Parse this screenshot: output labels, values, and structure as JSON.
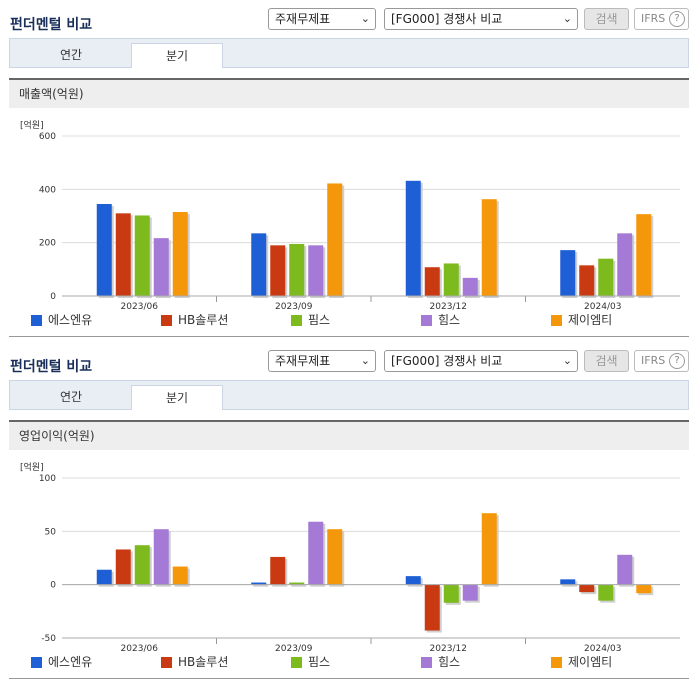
{
  "panels": [
    {
      "title": "펀더멘털 비교",
      "select1": "주재무제표",
      "select2": "[FG000] 경쟁사 비교",
      "search_label": "검색",
      "ifrs_label": "IFRS",
      "help_label": "?",
      "tabs": [
        {
          "label": "연간"
        },
        {
          "label": "분기"
        }
      ],
      "active_tab": 1,
      "section_title": "매출액(억원)"
    },
    {
      "title": "펀더멘털 비교",
      "select1": "주재무제표",
      "select2": "[FG000] 경쟁사 비교",
      "search_label": "검색",
      "ifrs_label": "IFRS",
      "help_label": "?",
      "tabs": [
        {
          "label": "연간"
        },
        {
          "label": "분기"
        }
      ],
      "active_tab": 1,
      "section_title": "영업이익(억원)"
    }
  ],
  "chart_data": [
    {
      "type": "bar",
      "unit_label": "[억원]",
      "categories": [
        "2023/06",
        "2023/09",
        "2023/12",
        "2024/03"
      ],
      "ylim": [
        0,
        600
      ],
      "yticks": [
        0,
        200,
        400,
        600
      ],
      "grid": true,
      "legend_position": "bottom",
      "series": [
        {
          "name": "에스엔유",
          "color": "#1f5fd6",
          "values": [
            345,
            235,
            432,
            172
          ]
        },
        {
          "name": "HB솔루션",
          "color": "#c93a12",
          "values": [
            310,
            190,
            108,
            115
          ]
        },
        {
          "name": "핌스",
          "color": "#7dba1e",
          "values": [
            302,
            195,
            122,
            140
          ]
        },
        {
          "name": "힘스",
          "color": "#a47ad6",
          "values": [
            217,
            190,
            68,
            235
          ]
        },
        {
          "name": "제이엠티",
          "color": "#f5970a",
          "values": [
            315,
            422,
            363,
            307
          ]
        }
      ]
    },
    {
      "type": "bar",
      "unit_label": "[억원]",
      "categories": [
        "2023/06",
        "2023/09",
        "2023/12",
        "2024/03"
      ],
      "ylim": [
        -50,
        100
      ],
      "yticks": [
        -50,
        0,
        50,
        100
      ],
      "grid": true,
      "legend_position": "bottom",
      "series": [
        {
          "name": "에스엔유",
          "color": "#1f5fd6",
          "values": [
            14,
            2,
            8,
            5
          ]
        },
        {
          "name": "HB솔루션",
          "color": "#c93a12",
          "values": [
            33,
            26,
            -43,
            -7
          ]
        },
        {
          "name": "핌스",
          "color": "#7dba1e",
          "values": [
            37,
            2,
            -17,
            -15
          ]
        },
        {
          "name": "힘스",
          "color": "#a47ad6",
          "values": [
            52,
            59,
            -15,
            28
          ]
        },
        {
          "name": "제이엠티",
          "color": "#f5970a",
          "values": [
            17,
            52,
            67,
            -8
          ]
        }
      ]
    }
  ]
}
